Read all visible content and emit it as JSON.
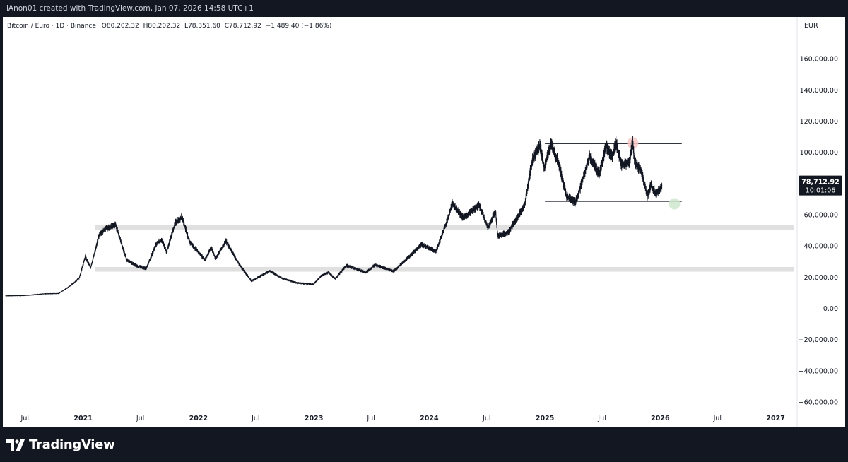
{
  "header": {
    "attribution": "iAnon01 created with TradingView.com, Jan 07, 2026 14:58 UTC+1"
  },
  "legend": {
    "symbol": "Bitcoin / Euro · 1D · Binance",
    "open_label": "O",
    "open": "80,202.32",
    "high_label": "H",
    "high": "80,202.32",
    "low_label": "L",
    "low": "78,351.60",
    "close_label": "C",
    "close": "78,712.92",
    "change": "−1,489.40 (−1.86%)"
  },
  "currency": "EUR",
  "price_label": {
    "price": "78,712.92",
    "countdown": "10:01:06"
  },
  "brand": {
    "name": "TradingView"
  },
  "colors": {
    "background": "#ffffff",
    "frame": "#131722",
    "candles": "#131722",
    "zone": "#e0e0e0",
    "price_tag": "#131722",
    "top_marker": "#f8c8c8",
    "bottom_marker": "#cfe8cf"
  },
  "chart_data": {
    "type": "line",
    "series": [
      {
        "points": [
          [
            "2020-05-01",
            8000
          ],
          [
            "2020-07-01",
            8200
          ],
          [
            "2020-09-01",
            9300
          ],
          [
            "2020-10-15",
            9500
          ],
          [
            "2020-11-15",
            13500
          ],
          [
            "2020-12-01",
            16000
          ],
          [
            "2020-12-20",
            19500
          ],
          [
            "2021-01-08",
            33000
          ],
          [
            "2021-01-25",
            26000
          ],
          [
            "2021-02-21",
            47000
          ],
          [
            "2021-03-13",
            51000
          ],
          [
            "2021-04-14",
            53500
          ],
          [
            "2021-05-19",
            31000
          ],
          [
            "2021-06-22",
            27000
          ],
          [
            "2021-07-20",
            25500
          ],
          [
            "2021-08-20",
            41000
          ],
          [
            "2021-09-07",
            44000
          ],
          [
            "2021-09-22",
            36000
          ],
          [
            "2021-10-20",
            55000
          ],
          [
            "2021-11-10",
            58500
          ],
          [
            "2021-12-04",
            42500
          ],
          [
            "2022-01-22",
            31000
          ],
          [
            "2022-02-10",
            39000
          ],
          [
            "2022-02-24",
            32000
          ],
          [
            "2022-03-29",
            43000
          ],
          [
            "2022-05-12",
            27500
          ],
          [
            "2022-06-18",
            17500
          ],
          [
            "2022-08-15",
            24000
          ],
          [
            "2022-09-20",
            19500
          ],
          [
            "2022-11-09",
            16200
          ],
          [
            "2022-12-31",
            15500
          ],
          [
            "2023-01-25",
            21000
          ],
          [
            "2023-02-16",
            23000
          ],
          [
            "2023-03-10",
            19000
          ],
          [
            "2023-04-14",
            27500
          ],
          [
            "2023-06-15",
            23000
          ],
          [
            "2023-07-13",
            27800
          ],
          [
            "2023-09-11",
            23800
          ],
          [
            "2023-10-24",
            32000
          ],
          [
            "2023-12-08",
            41000
          ],
          [
            "2024-01-23",
            36500
          ],
          [
            "2024-02-28",
            57000
          ],
          [
            "2024-03-14",
            67000
          ],
          [
            "2024-04-17",
            58000
          ],
          [
            "2024-06-07",
            66000
          ],
          [
            "2024-07-05",
            52000
          ],
          [
            "2024-07-29",
            62000
          ],
          [
            "2024-08-05",
            46500
          ],
          [
            "2024-09-06",
            48500
          ],
          [
            "2024-10-29",
            66000
          ],
          [
            "2024-11-22",
            95000
          ],
          [
            "2024-12-17",
            104500
          ],
          [
            "2024-12-30",
            89500
          ],
          [
            "2025-01-20",
            105500
          ],
          [
            "2025-02-15",
            92000
          ],
          [
            "2025-03-10",
            72000
          ],
          [
            "2025-04-07",
            68000
          ],
          [
            "2025-04-20",
            75000
          ],
          [
            "2025-05-22",
            98000
          ],
          [
            "2025-06-22",
            86000
          ],
          [
            "2025-07-14",
            104000
          ],
          [
            "2025-08-02",
            97000
          ],
          [
            "2025-08-14",
            106000
          ],
          [
            "2025-09-01",
            92000
          ],
          [
            "2025-09-25",
            93500
          ],
          [
            "2025-10-06",
            107000
          ],
          [
            "2025-10-11",
            95000
          ],
          [
            "2025-11-05",
            86000
          ],
          [
            "2025-11-21",
            72000
          ],
          [
            "2025-12-03",
            79000
          ],
          [
            "2025-12-18",
            73500
          ],
          [
            "2026-01-02",
            76500
          ],
          [
            "2026-01-07",
            78712.92
          ]
        ]
      }
    ],
    "last_ohlc": {
      "open": 80202.32,
      "high": 80202.32,
      "low": 78351.6,
      "close": 78712.92,
      "change": -1489.4,
      "change_pct": -1.86
    },
    "ylim": [
      -65000,
      175000
    ],
    "xlim": [
      "2020-05-01",
      "2027-03-01"
    ],
    "y_ticks": [
      160000,
      140000,
      120000,
      100000,
      80000,
      60000,
      40000,
      20000,
      0,
      -20000,
      -40000,
      -60000
    ],
    "y_tick_labels": [
      "160,000.00",
      "140,000.00",
      "120,000.00",
      "100,000.00",
      "",
      "60,000.00",
      "40,000.00",
      "20,000.00",
      "0.00",
      "−20,000.00",
      "−40,000.00",
      "−60,000.00"
    ],
    "x_ticks": [
      {
        "date": "2020-07-01",
        "label": "Jul",
        "bold": false
      },
      {
        "date": "2021-01-01",
        "label": "2021",
        "bold": true
      },
      {
        "date": "2021-07-01",
        "label": "Jul",
        "bold": false
      },
      {
        "date": "2022-01-01",
        "label": "2022",
        "bold": true
      },
      {
        "date": "2022-07-01",
        "label": "Jul",
        "bold": false
      },
      {
        "date": "2023-01-01",
        "label": "2023",
        "bold": true
      },
      {
        "date": "2023-07-01",
        "label": "Jul",
        "bold": false
      },
      {
        "date": "2024-01-01",
        "label": "2024",
        "bold": true
      },
      {
        "date": "2024-07-01",
        "label": "Jul",
        "bold": false
      },
      {
        "date": "2025-01-01",
        "label": "2025",
        "bold": true
      },
      {
        "date": "2025-07-01",
        "label": "Jul",
        "bold": false
      },
      {
        "date": "2026-01-01",
        "label": "2026",
        "bold": true
      },
      {
        "date": "2026-07-01",
        "label": "Jul",
        "bold": false
      },
      {
        "date": "2027-01-01",
        "label": "2027",
        "bold": true
      }
    ],
    "zones": [
      {
        "low": 50000,
        "high": 53500
      },
      {
        "low": 23500,
        "high": 26500
      }
    ],
    "range_lines": [
      {
        "from": "2025-01-01",
        "to": "2026-03-10",
        "value": 105500
      },
      {
        "from": "2025-01-01",
        "to": "2026-03-10",
        "value": 68500
      }
    ],
    "markers": [
      {
        "date": "2025-10-06",
        "value": 106000,
        "kind": "top"
      },
      {
        "date": "2026-02-15",
        "value": 67000,
        "kind": "bottom"
      }
    ],
    "grid": false,
    "legend_position": "top-left"
  }
}
